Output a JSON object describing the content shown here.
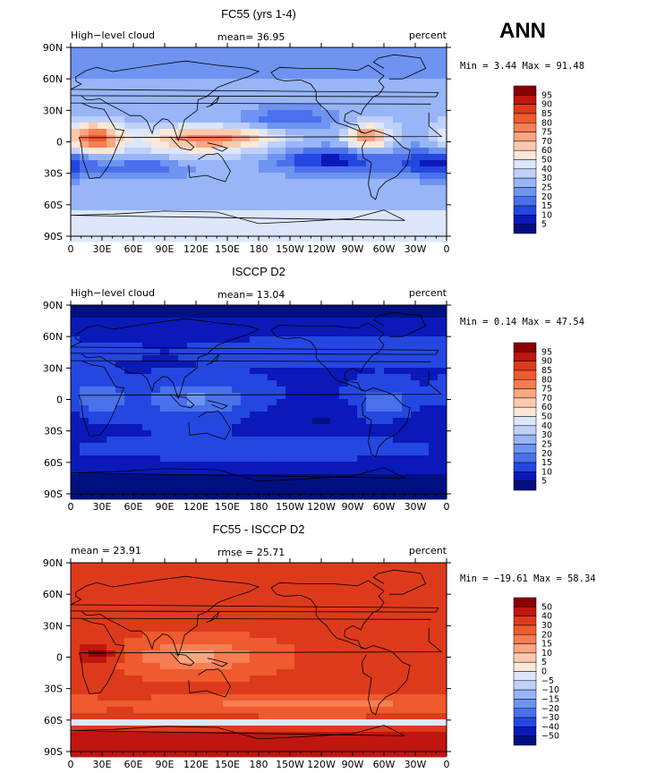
{
  "season": "ANN",
  "chart_data": [
    {
      "type": "heatmap",
      "title": "FC55 (yrs 1-4)",
      "left_label": "High−level cloud",
      "center_label": "mean=  36.95",
      "right_label": "percent",
      "minmax": "Min =    3.44 Max =  91.48",
      "field": "model",
      "mean": 36.95,
      "min": 3.44,
      "max": 91.48,
      "units": "percent",
      "xticks": [
        "0",
        "30E",
        "60E",
        "90E",
        "120E",
        "150E",
        "180",
        "150W",
        "120W",
        "90W",
        "60W",
        "30W",
        "0"
      ],
      "yticks": [
        "90N",
        "60N",
        "30N",
        "0",
        "30S",
        "60S",
        "90S"
      ],
      "levels": [
        "95",
        "90",
        "85",
        "80",
        "75",
        "70",
        "60",
        "50",
        "40",
        "30",
        "25",
        "20",
        "15",
        "10",
        "5"
      ],
      "colors": [
        "#8b0000",
        "#c0160f",
        "#dd3a1c",
        "#ef5a2e",
        "#f77e53",
        "#fca581",
        "#fdc9ad",
        "#fde8d8",
        "#dde6fa",
        "#bfd0fa",
        "#97b5f7",
        "#6f93f0",
        "#4a70ec",
        "#2447e1",
        "#0a19b8",
        "#000f80"
      ]
    },
    {
      "type": "heatmap",
      "title": "ISCCP D2",
      "left_label": "High−level cloud",
      "center_label": "mean=  13.04",
      "right_label": "percent",
      "minmax": "Min =    0.14 Max =  47.54",
      "field": "obs",
      "mean": 13.04,
      "min": 0.14,
      "max": 47.54,
      "units": "percent",
      "xticks": [
        "0",
        "30E",
        "60E",
        "90E",
        "120E",
        "150E",
        "180",
        "150W",
        "120W",
        "90W",
        "60W",
        "30W",
        "0"
      ],
      "yticks": [
        "90N",
        "60N",
        "30N",
        "0",
        "30S",
        "60S",
        "90S"
      ],
      "levels": [
        "95",
        "90",
        "85",
        "80",
        "75",
        "70",
        "60",
        "50",
        "40",
        "30",
        "25",
        "20",
        "15",
        "10",
        "5"
      ],
      "colors": [
        "#8b0000",
        "#c0160f",
        "#dd3a1c",
        "#ef5a2e",
        "#f77e53",
        "#fca581",
        "#fdc9ad",
        "#fde8d8",
        "#dde6fa",
        "#bfd0fa",
        "#97b5f7",
        "#6f93f0",
        "#4a70ec",
        "#2447e1",
        "#0a19b8",
        "#000f80"
      ]
    },
    {
      "type": "heatmap",
      "title": "FC55 - ISCCP D2",
      "left_label": "mean =   23.91",
      "center_label": "rmse =   25.71",
      "right_label": "percent",
      "minmax": "Min = −19.61 Max =  58.34",
      "field": "diff",
      "mean": 23.91,
      "rmse": 25.71,
      "min": -19.61,
      "max": 58.34,
      "units": "percent",
      "xticks": [
        "0",
        "30E",
        "60E",
        "90E",
        "120E",
        "150E",
        "180",
        "150W",
        "120W",
        "90W",
        "60W",
        "30W",
        "0"
      ],
      "yticks": [
        "90N",
        "60N",
        "30N",
        "0",
        "30S",
        "60S",
        "90S"
      ],
      "levels": [
        "50",
        "40",
        "30",
        "20",
        "15",
        "10",
        "5",
        "0",
        "−5",
        "−10",
        "−15",
        "−20",
        "−30",
        "−40",
        "−50"
      ],
      "colors": [
        "#8b0000",
        "#c0160f",
        "#dd3a1c",
        "#ef5a2e",
        "#f77e53",
        "#fca581",
        "#fdc9ad",
        "#fde8d8",
        "#dde6fa",
        "#bfd0fa",
        "#97b5f7",
        "#6f93f0",
        "#4a70ec",
        "#2447e1",
        "#0a19b8",
        "#000f80"
      ]
    }
  ]
}
